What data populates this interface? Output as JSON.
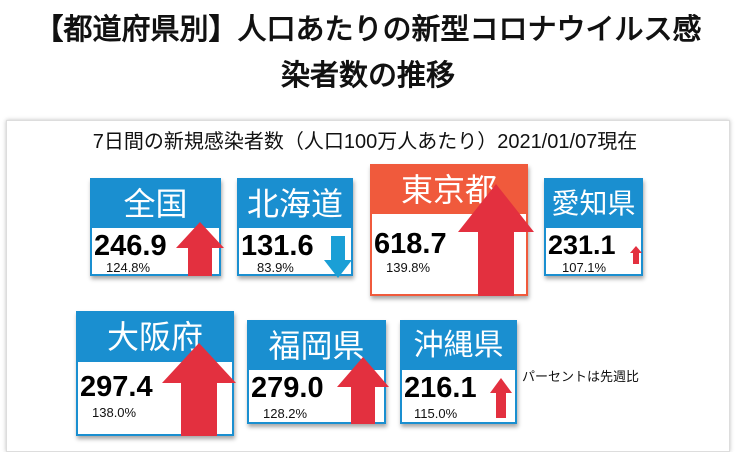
{
  "title": {
    "line1": "【都道府県別】人口あたりの新型コロナウイルス感",
    "line2": "染者数の推移"
  },
  "subtitle": "7日間の新規感染者数（人口100万人あたり）2021/01/07現在",
  "note": "パーセントは先週比",
  "colors": {
    "header_blue": "#1a8fd0",
    "header_hot": "#f05a3c",
    "arrow_up": "#e3303f",
    "arrow_down": "#1a9fd6"
  },
  "cards": [
    {
      "name": "全国",
      "value": "246.9",
      "percent": "124.8%",
      "direction": "up"
    },
    {
      "name": "北海道",
      "value": "131.6",
      "percent": "83.9%",
      "direction": "down"
    },
    {
      "name": "東京都",
      "value": "618.7",
      "percent": "139.8%",
      "direction": "up"
    },
    {
      "name": "愛知県",
      "value": "231.1",
      "percent": "107.1%",
      "direction": "up"
    },
    {
      "name": "大阪府",
      "value": "297.4",
      "percent": "138.0%",
      "direction": "up"
    },
    {
      "name": "福岡県",
      "value": "279.0",
      "percent": "128.2%",
      "direction": "up"
    },
    {
      "name": "沖縄県",
      "value": "216.1",
      "percent": "115.0%",
      "direction": "up"
    }
  ]
}
